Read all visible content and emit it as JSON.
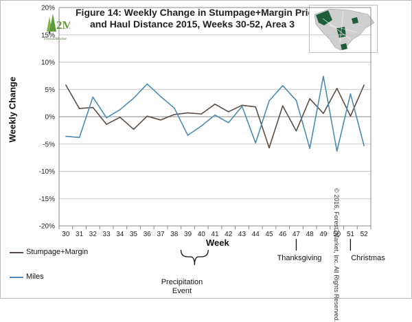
{
  "chart_data": {
    "type": "line",
    "title": [
      "Figure 14: Weekly Change in Stumpage+Margin Price",
      "and Haul Distance 2015, Weeks 30-52, Area 3"
    ],
    "xlabel": "Week",
    "ylabel": "Weekly Change",
    "categories": [
      "30",
      "31",
      "32",
      "33",
      "34",
      "35",
      "36",
      "37",
      "38",
      "39",
      "40",
      "41",
      "42",
      "43",
      "44",
      "45",
      "46",
      "47",
      "48",
      "49",
      "50",
      "51",
      "52"
    ],
    "y_ticks": [
      "-20%",
      "-15%",
      "-10%",
      "-5%",
      "0%",
      "5%",
      "10%",
      "15%",
      "20%"
    ],
    "ylim": [
      -20,
      20
    ],
    "grid": true,
    "series": [
      {
        "name": "Stumpage+Margin",
        "color": "#5a4c43",
        "values": [
          5.8,
          1.5,
          1.7,
          -1.4,
          -0.1,
          -2.3,
          0.1,
          -0.6,
          0.4,
          0.7,
          0.5,
          2.3,
          0.9,
          2.1,
          1.8,
          -5.7,
          2.0,
          -2.6,
          3.3,
          0.6,
          5.2,
          0.1,
          5.8
        ]
      },
      {
        "name": "Miles",
        "color": "#4a8ab4",
        "values": [
          -3.6,
          -3.8,
          3.6,
          -0.2,
          1.3,
          3.4,
          6.0,
          3.7,
          1.6,
          -3.4,
          -1.7,
          0.3,
          -1.1,
          1.9,
          -4.8,
          2.9,
          5.7,
          3.0,
          -5.8,
          7.4,
          -6.3,
          4.2,
          -5.3
        ]
      }
    ],
    "annotations": [
      {
        "text": [
          "Precipitation",
          "Event"
        ]
      },
      {
        "text": [
          "Thanksgiving"
        ]
      },
      {
        "text": [
          "Christmas"
        ]
      }
    ]
  },
  "copyright": "© 2016, Forest2Market, Inc. All Rights Reserved.",
  "logo_text": "Forest2Market",
  "colors": {
    "grid": "#c8c8c8",
    "axis": "#888888",
    "map_fill": "#cfcfcf",
    "map_highlight": "#1f5e3a"
  }
}
